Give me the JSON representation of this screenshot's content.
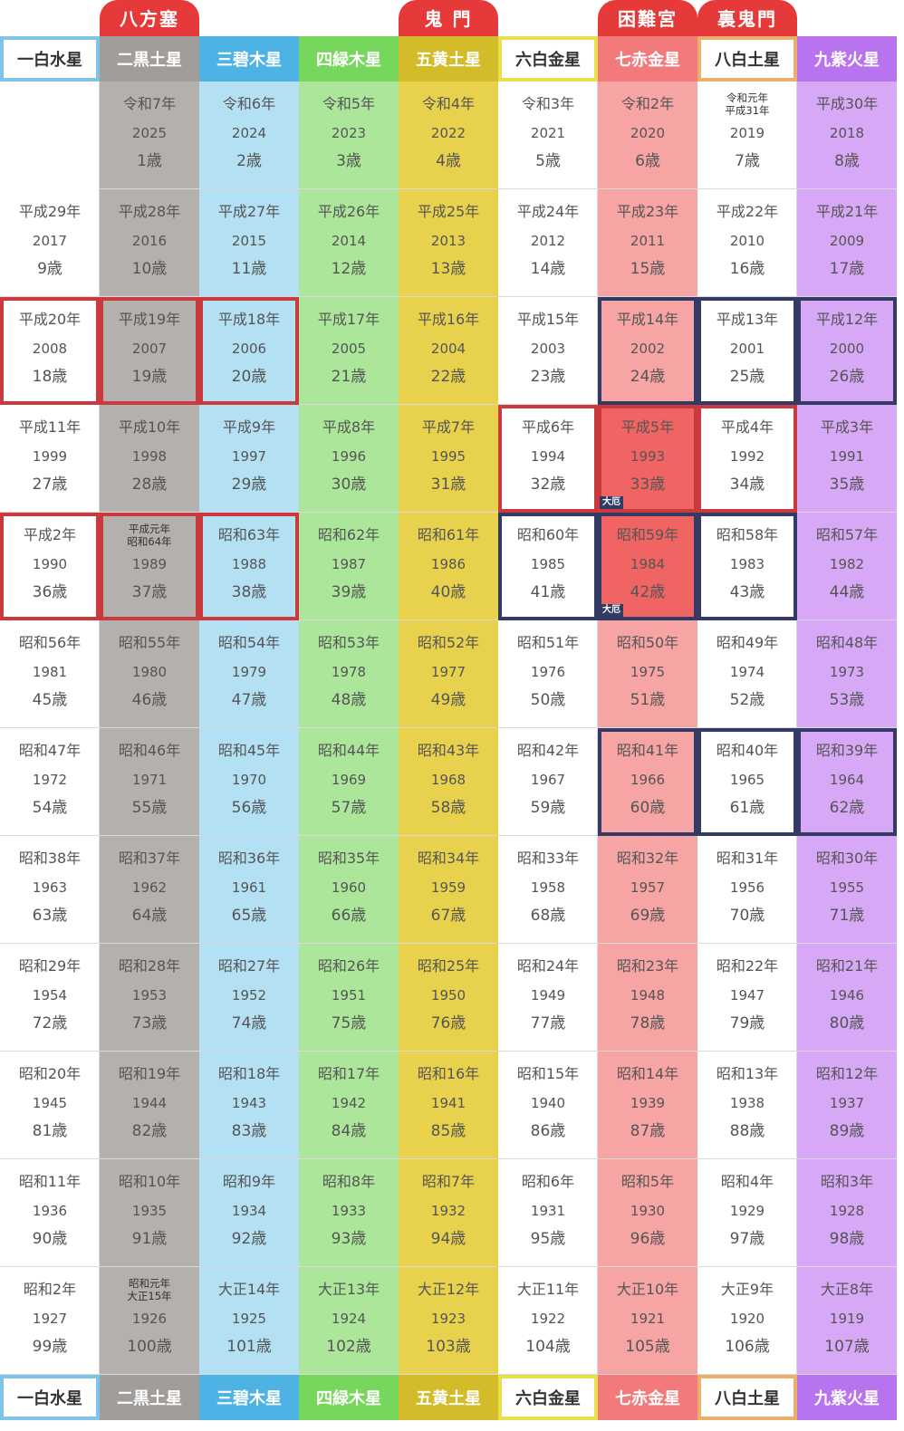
{
  "top_tabs": [
    {
      "label": "八方塞",
      "col": 1
    },
    {
      "label": "鬼 門",
      "col": 4
    },
    {
      "label": "困難宮",
      "col": 6
    },
    {
      "label": "裏鬼門",
      "col": 7
    }
  ],
  "columns": [
    {
      "name": "一白水星",
      "bg": "#ffffff",
      "hdr_bg": "#ffffff",
      "hdr_color": "#333333",
      "hdr_border": "#7fc3e8"
    },
    {
      "name": "二黒土星",
      "bg": "#b3b0ad",
      "hdr_bg": "#a09d9a",
      "hdr_color": "#ffffff",
      "hdr_border": ""
    },
    {
      "name": "三碧木星",
      "bg": "#b3e0f2",
      "hdr_bg": "#4db3e4",
      "hdr_color": "#ffffff",
      "hdr_border": ""
    },
    {
      "name": "四緑木星",
      "bg": "#ace69a",
      "hdr_bg": "#77d65c",
      "hdr_color": "#ffffff",
      "hdr_border": ""
    },
    {
      "name": "五黄土星",
      "bg": "#e8d24d",
      "hdr_bg": "#d4bb2a",
      "hdr_color": "#ffffff",
      "hdr_border": ""
    },
    {
      "name": "六白金星",
      "bg": "#ffffff",
      "hdr_bg": "#ffffff",
      "hdr_color": "#333333",
      "hdr_border": "#e8df4a"
    },
    {
      "name": "七赤金星",
      "bg": "#f6a4a4",
      "hdr_bg": "#f27a7a",
      "hdr_color": "#ffffff",
      "hdr_border": ""
    },
    {
      "name": "八白土星",
      "bg": "#ffffff",
      "hdr_bg": "#ffffff",
      "hdr_color": "#333333",
      "hdr_border": "#eab06a"
    },
    {
      "name": "九紫火星",
      "bg": "#d6a8f5",
      "hdr_bg": "#b873ee",
      "hdr_color": "#ffffff",
      "hdr_border": ""
    }
  ],
  "rows": [
    [
      null,
      {
        "era": "令和7年",
        "year": "2025",
        "age": "1歳"
      },
      {
        "era": "令和6年",
        "year": "2024",
        "age": "2歳"
      },
      {
        "era": "令和5年",
        "year": "2023",
        "age": "3歳"
      },
      {
        "era": "令和4年",
        "year": "2022",
        "age": "4歳"
      },
      {
        "era": "令和3年",
        "year": "2021",
        "age": "5歳"
      },
      {
        "era": "令和2年",
        "year": "2020",
        "age": "6歳"
      },
      {
        "era": "令和元年\n平成31年",
        "year": "2019",
        "age": "7歳"
      },
      {
        "era": "平成30年",
        "year": "2018",
        "age": "8歳"
      }
    ],
    [
      {
        "era": "平成29年",
        "year": "2017",
        "age": "9歳"
      },
      {
        "era": "平成28年",
        "year": "2016",
        "age": "10歳"
      },
      {
        "era": "平成27年",
        "year": "2015",
        "age": "11歳"
      },
      {
        "era": "平成26年",
        "year": "2014",
        "age": "12歳"
      },
      {
        "era": "平成25年",
        "year": "2013",
        "age": "13歳"
      },
      {
        "era": "平成24年",
        "year": "2012",
        "age": "14歳"
      },
      {
        "era": "平成23年",
        "year": "2011",
        "age": "15歳"
      },
      {
        "era": "平成22年",
        "year": "2010",
        "age": "16歳"
      },
      {
        "era": "平成21年",
        "year": "2009",
        "age": "17歳"
      }
    ],
    [
      {
        "era": "平成20年",
        "year": "2008",
        "age": "18歳",
        "hl": "red"
      },
      {
        "era": "平成19年",
        "year": "2007",
        "age": "19歳",
        "hl": "red"
      },
      {
        "era": "平成18年",
        "year": "2006",
        "age": "20歳",
        "hl": "red"
      },
      {
        "era": "平成17年",
        "year": "2005",
        "age": "21歳"
      },
      {
        "era": "平成16年",
        "year": "2004",
        "age": "22歳"
      },
      {
        "era": "平成15年",
        "year": "2003",
        "age": "23歳"
      },
      {
        "era": "平成14年",
        "year": "2002",
        "age": "24歳",
        "hl": "navy"
      },
      {
        "era": "平成13年",
        "year": "2001",
        "age": "25歳",
        "hl": "navy"
      },
      {
        "era": "平成12年",
        "year": "2000",
        "age": "26歳",
        "hl": "navy"
      }
    ],
    [
      {
        "era": "平成11年",
        "year": "1999",
        "age": "27歳"
      },
      {
        "era": "平成10年",
        "year": "1998",
        "age": "28歳"
      },
      {
        "era": "平成9年",
        "year": "1997",
        "age": "29歳"
      },
      {
        "era": "平成8年",
        "year": "1996",
        "age": "30歳"
      },
      {
        "era": "平成7年",
        "year": "1995",
        "age": "31歳"
      },
      {
        "era": "平成6年",
        "year": "1994",
        "age": "32歳",
        "hl": "red"
      },
      {
        "era": "平成5年",
        "year": "1993",
        "age": "33歳",
        "hl": "red",
        "bg": "#f06464",
        "badge": "大厄"
      },
      {
        "era": "平成4年",
        "year": "1992",
        "age": "34歳",
        "hl": "red"
      },
      {
        "era": "平成3年",
        "year": "1991",
        "age": "35歳"
      }
    ],
    [
      {
        "era": "平成2年",
        "year": "1990",
        "age": "36歳",
        "hl": "red"
      },
      {
        "era": "平成元年\n昭和64年",
        "year": "1989",
        "age": "37歳",
        "hl": "red"
      },
      {
        "era": "昭和63年",
        "year": "1988",
        "age": "38歳",
        "hl": "red"
      },
      {
        "era": "昭和62年",
        "year": "1987",
        "age": "39歳"
      },
      {
        "era": "昭和61年",
        "year": "1986",
        "age": "40歳"
      },
      {
        "era": "昭和60年",
        "year": "1985",
        "age": "41歳",
        "hl": "navy"
      },
      {
        "era": "昭和59年",
        "year": "1984",
        "age": "42歳",
        "hl": "navy",
        "bg": "#f06464",
        "badge": "大厄"
      },
      {
        "era": "昭和58年",
        "year": "1983",
        "age": "43歳",
        "hl": "navy"
      },
      {
        "era": "昭和57年",
        "year": "1982",
        "age": "44歳"
      }
    ],
    [
      {
        "era": "昭和56年",
        "year": "1981",
        "age": "45歳"
      },
      {
        "era": "昭和55年",
        "year": "1980",
        "age": "46歳"
      },
      {
        "era": "昭和54年",
        "year": "1979",
        "age": "47歳"
      },
      {
        "era": "昭和53年",
        "year": "1978",
        "age": "48歳"
      },
      {
        "era": "昭和52年",
        "year": "1977",
        "age": "49歳"
      },
      {
        "era": "昭和51年",
        "year": "1976",
        "age": "50歳"
      },
      {
        "era": "昭和50年",
        "year": "1975",
        "age": "51歳"
      },
      {
        "era": "昭和49年",
        "year": "1974",
        "age": "52歳"
      },
      {
        "era": "昭和48年",
        "year": "1973",
        "age": "53歳"
      }
    ],
    [
      {
        "era": "昭和47年",
        "year": "1972",
        "age": "54歳"
      },
      {
        "era": "昭和46年",
        "year": "1971",
        "age": "55歳"
      },
      {
        "era": "昭和45年",
        "year": "1970",
        "age": "56歳"
      },
      {
        "era": "昭和44年",
        "year": "1969",
        "age": "57歳"
      },
      {
        "era": "昭和43年",
        "year": "1968",
        "age": "58歳"
      },
      {
        "era": "昭和42年",
        "year": "1967",
        "age": "59歳"
      },
      {
        "era": "昭和41年",
        "year": "1966",
        "age": "60歳",
        "hl": "navy"
      },
      {
        "era": "昭和40年",
        "year": "1965",
        "age": "61歳",
        "hl": "navy"
      },
      {
        "era": "昭和39年",
        "year": "1964",
        "age": "62歳",
        "hl": "navy"
      }
    ],
    [
      {
        "era": "昭和38年",
        "year": "1963",
        "age": "63歳"
      },
      {
        "era": "昭和37年",
        "year": "1962",
        "age": "64歳"
      },
      {
        "era": "昭和36年",
        "year": "1961",
        "age": "65歳"
      },
      {
        "era": "昭和35年",
        "year": "1960",
        "age": "66歳"
      },
      {
        "era": "昭和34年",
        "year": "1959",
        "age": "67歳"
      },
      {
        "era": "昭和33年",
        "year": "1958",
        "age": "68歳"
      },
      {
        "era": "昭和32年",
        "year": "1957",
        "age": "69歳"
      },
      {
        "era": "昭和31年",
        "year": "1956",
        "age": "70歳"
      },
      {
        "era": "昭和30年",
        "year": "1955",
        "age": "71歳"
      }
    ],
    [
      {
        "era": "昭和29年",
        "year": "1954",
        "age": "72歳"
      },
      {
        "era": "昭和28年",
        "year": "1953",
        "age": "73歳"
      },
      {
        "era": "昭和27年",
        "year": "1952",
        "age": "74歳"
      },
      {
        "era": "昭和26年",
        "year": "1951",
        "age": "75歳"
      },
      {
        "era": "昭和25年",
        "year": "1950",
        "age": "76歳"
      },
      {
        "era": "昭和24年",
        "year": "1949",
        "age": "77歳"
      },
      {
        "era": "昭和23年",
        "year": "1948",
        "age": "78歳"
      },
      {
        "era": "昭和22年",
        "year": "1947",
        "age": "79歳"
      },
      {
        "era": "昭和21年",
        "year": "1946",
        "age": "80歳"
      }
    ],
    [
      {
        "era": "昭和20年",
        "year": "1945",
        "age": "81歳"
      },
      {
        "era": "昭和19年",
        "year": "1944",
        "age": "82歳"
      },
      {
        "era": "昭和18年",
        "year": "1943",
        "age": "83歳"
      },
      {
        "era": "昭和17年",
        "year": "1942",
        "age": "84歳"
      },
      {
        "era": "昭和16年",
        "year": "1941",
        "age": "85歳"
      },
      {
        "era": "昭和15年",
        "year": "1940",
        "age": "86歳"
      },
      {
        "era": "昭和14年",
        "year": "1939",
        "age": "87歳"
      },
      {
        "era": "昭和13年",
        "year": "1938",
        "age": "88歳"
      },
      {
        "era": "昭和12年",
        "year": "1937",
        "age": "89歳"
      }
    ],
    [
      {
        "era": "昭和11年",
        "year": "1936",
        "age": "90歳"
      },
      {
        "era": "昭和10年",
        "year": "1935",
        "age": "91歳"
      },
      {
        "era": "昭和9年",
        "year": "1934",
        "age": "92歳"
      },
      {
        "era": "昭和8年",
        "year": "1933",
        "age": "93歳"
      },
      {
        "era": "昭和7年",
        "year": "1932",
        "age": "94歳"
      },
      {
        "era": "昭和6年",
        "year": "1931",
        "age": "95歳"
      },
      {
        "era": "昭和5年",
        "year": "1930",
        "age": "96歳"
      },
      {
        "era": "昭和4年",
        "year": "1929",
        "age": "97歳"
      },
      {
        "era": "昭和3年",
        "year": "1928",
        "age": "98歳"
      }
    ],
    [
      {
        "era": "昭和2年",
        "year": "1927",
        "age": "99歳"
      },
      {
        "era": "昭和元年\n大正15年",
        "year": "1926",
        "age": "100歳"
      },
      {
        "era": "大正14年",
        "year": "1925",
        "age": "101歳"
      },
      {
        "era": "大正13年",
        "year": "1924",
        "age": "102歳"
      },
      {
        "era": "大正12年",
        "year": "1923",
        "age": "103歳"
      },
      {
        "era": "大正11年",
        "year": "1922",
        "age": "104歳"
      },
      {
        "era": "大正10年",
        "year": "1921",
        "age": "105歳"
      },
      {
        "era": "大正9年",
        "year": "1920",
        "age": "106歳"
      },
      {
        "era": "大正8年",
        "year": "1919",
        "age": "107歳"
      }
    ]
  ]
}
